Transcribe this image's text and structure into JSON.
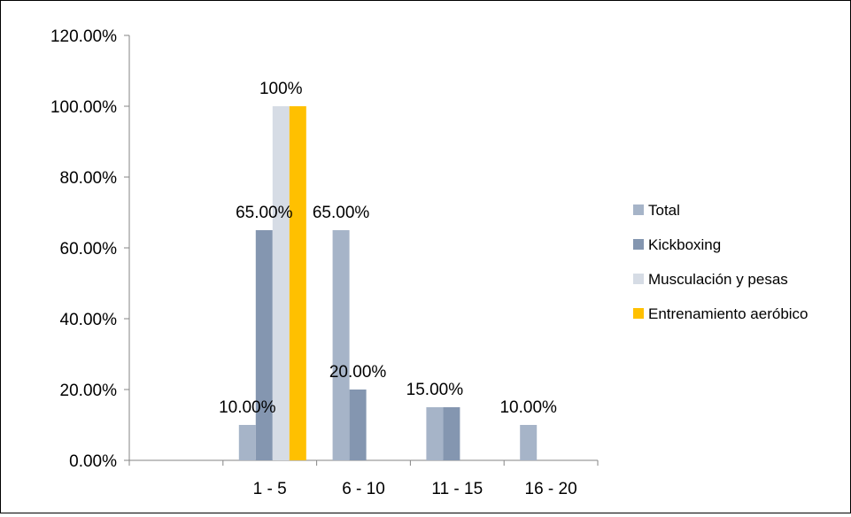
{
  "chart_data": {
    "type": "bar",
    "title": "",
    "xlabel": "",
    "ylabel": "",
    "ylim": [
      0,
      1.2
    ],
    "y_ticks": [
      "0.00%",
      "20.00%",
      "40.00%",
      "60.00%",
      "80.00%",
      "100.00%",
      "120.00%"
    ],
    "categories": [
      "",
      "1 - 5",
      "6 - 10",
      "11 - 15",
      "16 - 20"
    ],
    "series": [
      {
        "name": "Total",
        "color": "#a6b4c8",
        "values": [
          null,
          0.1,
          0.65,
          0.15,
          0.1
        ]
      },
      {
        "name": "Kickboxing",
        "color": "#8496b0",
        "values": [
          null,
          0.65,
          0.2,
          0.15,
          null
        ]
      },
      {
        "name": "Musculación y pesas",
        "color": "#d6dce5",
        "values": [
          null,
          1.0,
          null,
          null,
          null
        ]
      },
      {
        "name": "Entrenamiento aeróbico",
        "color": "#ffc000",
        "values": [
          null,
          1.0,
          null,
          null,
          null
        ]
      }
    ],
    "data_labels": [
      {
        "text": "10.00%",
        "category": "1 - 5",
        "series": "Total"
      },
      {
        "text": "65.00%",
        "category": "1 - 5",
        "series": "Kickboxing"
      },
      {
        "text": "100%",
        "category": "1 - 5",
        "series": "Musculación y pesas"
      },
      {
        "text": "65.00%",
        "category": "6 - 10",
        "series": "Total"
      },
      {
        "text": "20.00%",
        "category": "6 - 10",
        "series": "Kickboxing"
      },
      {
        "text": "15.00%",
        "category": "11 - 15",
        "series": "Total"
      },
      {
        "text": "10.00%",
        "category": "16 - 20",
        "series": "Total"
      }
    ],
    "grid": false,
    "legend_position": "right"
  }
}
